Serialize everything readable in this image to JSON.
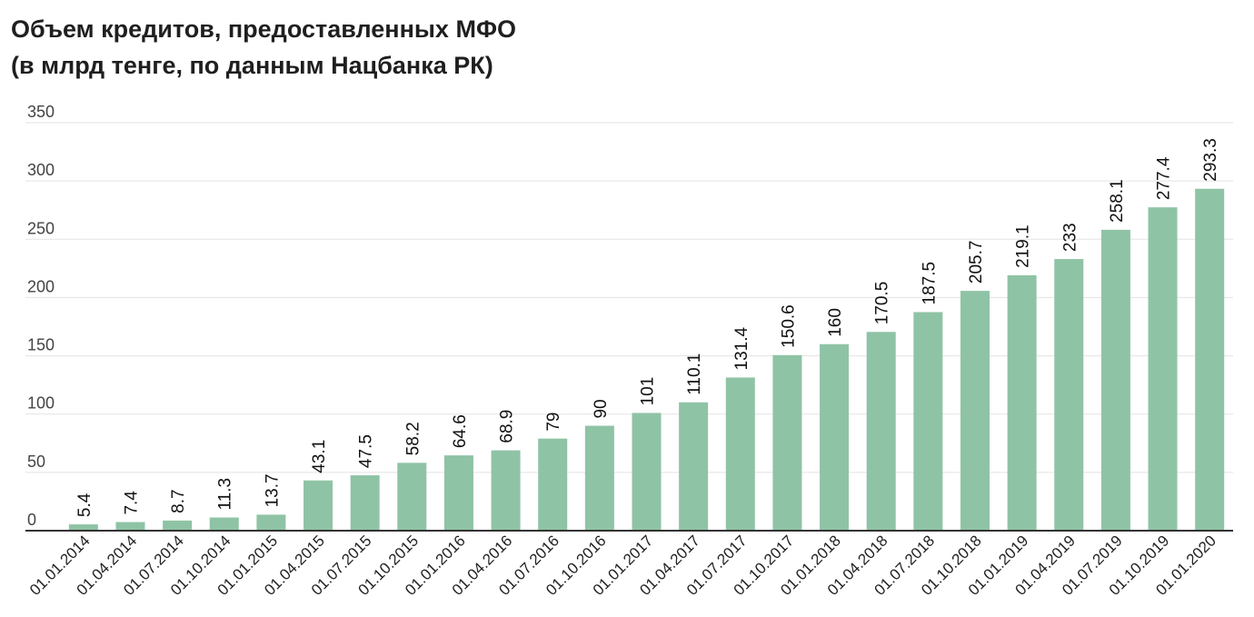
{
  "chart_data": {
    "type": "bar",
    "title": "Объем кредитов, предоставленных МФО",
    "subtitle": "(в млрд тенге, по данным Нацбанка РК)",
    "xlabel": "",
    "ylabel": "",
    "ylim": [
      0,
      350
    ],
    "yticks": [
      0,
      50,
      100,
      150,
      200,
      250,
      300,
      350
    ],
    "grid": true,
    "legend": "none",
    "bar_color": "#8fc3a5",
    "categories": [
      "01.01.2014",
      "01.04.2014",
      "01.07.2014",
      "01.10.2014",
      "01.01.2015",
      "01.04.2015",
      "01.07.2015",
      "01.10.2015",
      "01.01.2016",
      "01.04.2016",
      "01.07.2016",
      "01.10.2016",
      "01.01.2017",
      "01.04.2017",
      "01.07.2017",
      "01.10.2017",
      "01.01.2018",
      "01.04.2018",
      "01.07.2018",
      "01.10.2018",
      "01.01.2019",
      "01.04.2019",
      "01.07.2019",
      "01.10.2019",
      "01.01.2020"
    ],
    "values": [
      5.4,
      7.4,
      8.7,
      11.3,
      13.7,
      43.1,
      47.5,
      58.2,
      64.6,
      68.9,
      79,
      90,
      101,
      110.1,
      131.4,
      150.6,
      160,
      170.5,
      187.5,
      205.7,
      219.1,
      233,
      258.1,
      277.4,
      293.3
    ]
  }
}
